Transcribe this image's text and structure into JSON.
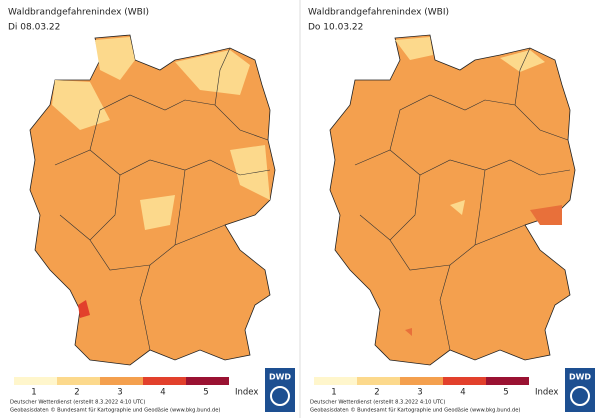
{
  "panels": [
    {
      "title": "Waldbrandgefahrenindex (WBI)",
      "date": "Di 08.03.22",
      "legend": {
        "labels": [
          1,
          2,
          3,
          4,
          5
        ],
        "unit": "Index"
      },
      "credit": "Deutscher Wetterdienst (erstellt 8.3.2022 4:10 UTC)",
      "geodata": "Geobasisdaten © Bundesamt für Kartographie und Geodäsie (www.bkg.bund.de)",
      "logo": "DWD"
    },
    {
      "title": "Waldbrandgefahrenindex (WBI)",
      "date": "Do 10.03.22",
      "legend": {
        "labels": [
          1,
          2,
          3,
          4,
          5
        ],
        "unit": "Index"
      },
      "credit": "Deutscher Wetterdienst (erstellt 8.3.2022 4:10 UTC)",
      "geodata": "Geobasisdaten © Bundesamt für Kartographie und Geodäsie (www.bkg.bund.de)",
      "logo": "DWD"
    }
  ],
  "legend_colors": [
    "#fff6cc",
    "#fcd98c",
    "#f4a04e",
    "#e2402c",
    "#9a1232"
  ]
}
